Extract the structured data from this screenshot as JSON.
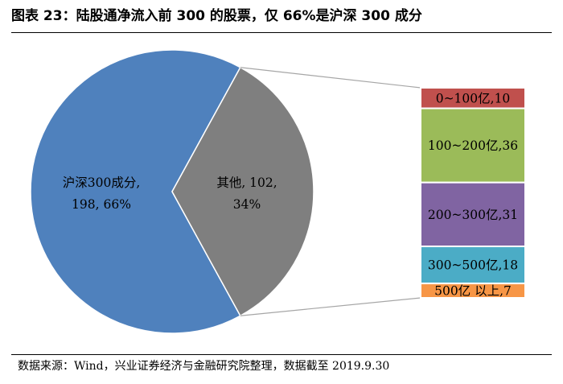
{
  "title": "图表 23：陆股通净流入前 300 的股票，仅 66%是沪深 300 成分",
  "source": "数据来源：Wind，兴业证券经济与金融研究院整理，数据截至 2019.9.30",
  "chart_data": {
    "type": "pie",
    "title": "图表 23：陆股通净流入前 300 的股票，仅 66%是沪深 300 成分",
    "slices": [
      {
        "label_line1": "沪深300成分,",
        "label_line2": "198, 66%",
        "value": 198,
        "color": "#4f81bd"
      },
      {
        "label_line1": "其他, 102,",
        "label_line2": "34%",
        "value": 102,
        "color": "#7f7f7f"
      }
    ],
    "breakdown": {
      "of": "其他",
      "type": "stacked-bar",
      "segments": [
        {
          "label": "0~100亿,10",
          "value": 10,
          "color": "#c0504d"
        },
        {
          "label": "100~200亿,36",
          "value": 36,
          "color": "#9bbb59"
        },
        {
          "label": "200~300亿,31",
          "value": 31,
          "color": "#8064a2"
        },
        {
          "label": "300~500亿,18",
          "value": 18,
          "color": "#4bacc6"
        },
        {
          "label": "500亿 以上,7",
          "value": 7,
          "color": "#f79646"
        }
      ]
    }
  }
}
